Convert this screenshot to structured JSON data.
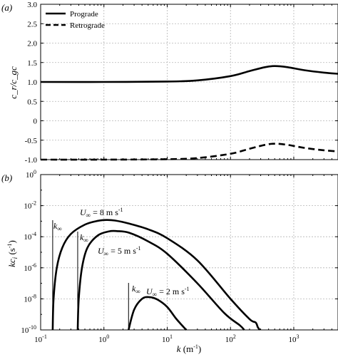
{
  "chart_data": [
    {
      "type": "line",
      "panel_label": "(a)",
      "xscale": "log",
      "xlim": [
        0.1,
        5000
      ],
      "ylim": [
        -1.0,
        3.0
      ],
      "xticks": [
        0.1,
        1,
        10,
        100,
        1000
      ],
      "xtick_labels": [],
      "yticks": [
        -1.0,
        -0.5,
        0,
        0.5,
        1.0,
        1.5,
        2.0,
        2.5,
        3.0
      ],
      "ytick_labels": [
        "-1.0",
        "-0.5",
        "0",
        "0.5",
        "1.0",
        "1.5",
        "2.0",
        "2.5",
        "3.0"
      ],
      "ylabel": "c_r/c_gc",
      "grid": true,
      "legend_position": "top-left",
      "series": [
        {
          "name": "Prograde",
          "style": "solid",
          "x": [
            0.1,
            1,
            10,
            30,
            100,
            200,
            350,
            500,
            800,
            1500,
            3000,
            5000
          ],
          "y": [
            1.0,
            1.0,
            1.01,
            1.04,
            1.15,
            1.28,
            1.38,
            1.41,
            1.38,
            1.3,
            1.24,
            1.21
          ]
        },
        {
          "name": "Retrograde",
          "style": "dashed",
          "x": [
            0.1,
            1,
            10,
            30,
            100,
            200,
            350,
            500,
            800,
            1500,
            3000,
            5000
          ],
          "y": [
            -1.0,
            -1.0,
            -0.99,
            -0.96,
            -0.85,
            -0.72,
            -0.62,
            -0.59,
            -0.62,
            -0.7,
            -0.76,
            -0.79
          ]
        }
      ]
    },
    {
      "type": "line",
      "panel_label": "(b)",
      "xscale": "log",
      "yscale": "log",
      "xlim": [
        0.1,
        5000
      ],
      "ylim": [
        1e-10,
        1
      ],
      "xticks": [
        0.1,
        1,
        10,
        100,
        1000
      ],
      "xtick_labels": [
        "10",
        "10",
        "10",
        "10",
        "10"
      ],
      "xtick_exponents": [
        "-1",
        "0",
        "1",
        "2",
        "3"
      ],
      "yticks": [
        1e-10,
        1e-08,
        1e-06,
        0.0001,
        0.01,
        1
      ],
      "ytick_labels": [
        "10",
        "10",
        "10",
        "10",
        "10",
        "10"
      ],
      "ytick_exponents": [
        "-10",
        "-8",
        "-6",
        "-4",
        "-2",
        "0"
      ],
      "xlabel": "k (m",
      "xlabel_exp": "-1",
      "xlabel_close": ")",
      "ylabel": "kc",
      "ylabel_sub": "i",
      "ylabel_rest": " (s",
      "ylabel_exp": "-1",
      "ylabel_close": ")",
      "grid": true,
      "annotations": [
        {
          "name": "U-inf-8",
          "text": "U",
          "sub": "∞",
          "rest": " = 8 m s",
          "exp": "-1"
        },
        {
          "name": "U-inf-5",
          "text": "U",
          "sub": "∞",
          "rest": " = 5 m s",
          "exp": "-1"
        },
        {
          "name": "U-inf-2",
          "text": "U",
          "sub": "∞",
          "rest": " = 2 m s",
          "exp": "-1"
        },
        {
          "name": "k-inf-8",
          "text": "k",
          "sub": "∞"
        },
        {
          "name": "k-inf-5",
          "text": "k",
          "sub": "∞"
        },
        {
          "name": "k-inf-2",
          "text": "k",
          "sub": "∞"
        }
      ],
      "k_infinity": [
        0.155,
        0.385,
        2.45
      ],
      "series": [
        {
          "label": "U∞ = 8 m s−1",
          "style": "solid",
          "x": [
            0.155,
            0.16,
            0.18,
            0.22,
            0.3,
            0.5,
            0.8,
            1.1,
            1.5,
            2.5,
            5,
            10,
            30,
            100,
            200,
            250,
            270,
            290
          ],
          "y": [
            1e-10,
            1e-08,
            1e-06,
            2e-05,
            0.00015,
            0.0006,
            0.00105,
            0.0012,
            0.0011,
            0.0007,
            0.0003,
            8e-05,
            3e-06,
            1e-08,
            5e-10,
            3e-10,
            1.5e-10,
            1e-10
          ]
        },
        {
          "label": "U∞ = 5 m s−1",
          "style": "solid",
          "x": [
            0.385,
            0.4,
            0.45,
            0.55,
            0.8,
            1.2,
            1.6,
            2.5,
            5,
            10,
            30,
            80,
            140,
            165
          ],
          "y": [
            1e-10,
            1e-08,
            1e-06,
            2e-05,
            0.00012,
            0.00022,
            0.00023,
            0.00018,
            5e-05,
            8e-06,
            1e-07,
            1.2e-09,
            2e-10,
            1e-10
          ]
        },
        {
          "label": "U∞ = 2 m s−1",
          "style": "solid",
          "x": [
            2.45,
            3,
            4,
            5.2,
            7,
            10,
            14,
            20
          ],
          "y": [
            1e-10,
            2e-09,
            1e-08,
            1.3e-08,
            9e-09,
            3e-09,
            5e-10,
            1e-10
          ]
        }
      ]
    }
  ]
}
